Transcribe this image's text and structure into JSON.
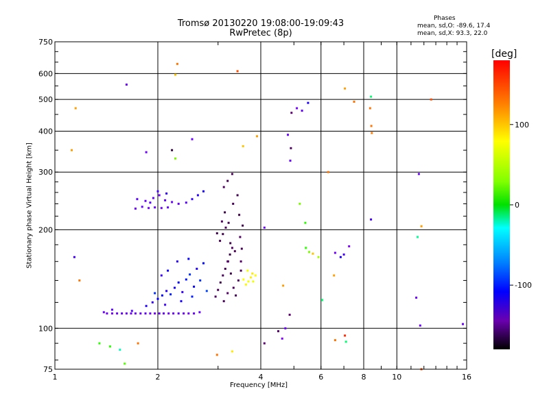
{
  "header": {
    "title": "Tromsø 20130220 19:08:00-19:09:43",
    "subtitle": "RwPretec (8p)",
    "phases_label": "Phases",
    "phases_o": "mean, sd,O: -89.6, 17.4",
    "phases_x": "mean, sd,X:  93.3, 22.0"
  },
  "chart_data": {
    "type": "scatter",
    "xlabel": "Frequency [MHz]",
    "ylabel": "Stationary phase Virtual Height [km]",
    "x_scale": "log",
    "y_scale": "log",
    "xlim": [
      1,
      16
    ],
    "ylim": [
      75,
      750
    ],
    "x_ticks": [
      1,
      2,
      4,
      6,
      8,
      10,
      16
    ],
    "y_ticks": [
      75,
      100,
      200,
      300,
      400,
      500,
      600,
      750
    ],
    "grid": true,
    "colorbar": {
      "label": "[deg]",
      "range": [
        -180,
        180
      ],
      "ticks": [
        100,
        0,
        -100
      ]
    },
    "series": [
      {
        "points": [
          [
            1.39,
            112,
            -110
          ],
          [
            1.42,
            111,
            -112
          ],
          [
            1.47,
            111,
            -111
          ],
          [
            1.52,
            111,
            -110
          ],
          [
            1.57,
            111,
            -108
          ],
          [
            1.62,
            111,
            -110
          ],
          [
            1.67,
            111,
            -111
          ],
          [
            1.72,
            111,
            -109
          ],
          [
            1.78,
            111,
            -110
          ],
          [
            1.84,
            111,
            -108
          ],
          [
            1.9,
            111,
            -110
          ],
          [
            1.96,
            111,
            -112
          ],
          [
            2.02,
            111,
            -110
          ],
          [
            2.08,
            111,
            -109
          ],
          [
            2.15,
            111,
            -111
          ],
          [
            2.22,
            111,
            -110
          ],
          [
            2.3,
            111,
            -108
          ],
          [
            2.38,
            111,
            -110
          ],
          [
            2.46,
            111,
            -112
          ],
          [
            2.55,
            111,
            -109
          ],
          [
            2.65,
            112,
            -110
          ],
          [
            1.47,
            114,
            -105
          ],
          [
            1.68,
            113,
            -102
          ],
          [
            1.85,
            117,
            -90
          ],
          [
            1.93,
            120,
            -95
          ],
          [
            2.0,
            123,
            -85
          ],
          [
            2.06,
            126,
            -80
          ],
          [
            2.12,
            130,
            -92
          ],
          [
            2.18,
            127,
            -75
          ],
          [
            2.24,
            133,
            -88
          ],
          [
            2.3,
            138,
            -82
          ],
          [
            2.36,
            129,
            -96
          ],
          [
            2.42,
            141,
            -78
          ],
          [
            2.48,
            146,
            -70
          ],
          [
            2.55,
            134,
            -85
          ],
          [
            2.6,
            152,
            -90
          ],
          [
            2.66,
            140,
            -72
          ],
          [
            2.72,
            158,
            -80
          ],
          [
            2.78,
            130,
            -65
          ],
          [
            2.05,
            145,
            -98
          ],
          [
            2.14,
            150,
            -86
          ],
          [
            2.28,
            160,
            -92
          ],
          [
            2.46,
            163,
            -84
          ],
          [
            1.96,
            128,
            -70
          ],
          [
            2.1,
            118,
            -98
          ],
          [
            2.34,
            121,
            -88
          ],
          [
            2.52,
            125,
            -76
          ],
          [
            2.95,
            125,
            -130
          ],
          [
            3.0,
            131,
            -135
          ],
          [
            3.05,
            138,
            -140
          ],
          [
            3.1,
            145,
            -132
          ],
          [
            3.15,
            152,
            -138
          ],
          [
            3.2,
            160,
            -130
          ],
          [
            3.25,
            168,
            -142
          ],
          [
            3.3,
            176,
            -128
          ],
          [
            3.04,
            185,
            -136
          ],
          [
            3.1,
            194,
            -140
          ],
          [
            3.16,
            203,
            -133
          ],
          [
            3.21,
            160,
            -126
          ],
          [
            3.27,
            147,
            -139
          ],
          [
            3.33,
            133,
            -131
          ],
          [
            3.38,
            126,
            -137
          ],
          [
            3.44,
            140,
            -129
          ],
          [
            3.12,
            121,
            -134
          ],
          [
            3.2,
            128,
            -127
          ],
          [
            3.26,
            182,
            -141
          ],
          [
            3.36,
            172,
            -133
          ],
          [
            3.5,
            160,
            -125
          ],
          [
            3.52,
            175,
            -135
          ],
          [
            3.48,
            190,
            -130
          ],
          [
            3.54,
            206,
            -138
          ],
          [
            3.46,
            222,
            -142
          ],
          [
            3.5,
            150,
            -132
          ],
          [
            2.98,
            195,
            -140
          ],
          [
            3.08,
            212,
            -128
          ],
          [
            3.14,
            226,
            -144
          ],
          [
            3.22,
            210,
            -136
          ],
          [
            3.32,
            240,
            -132
          ],
          [
            3.42,
            255,
            -138
          ],
          [
            3.12,
            270,
            -130
          ],
          [
            3.2,
            282,
            -140
          ],
          [
            3.3,
            296,
            -134
          ],
          [
            1.72,
            232,
            -110
          ],
          [
            1.8,
            235,
            -108
          ],
          [
            1.88,
            233,
            -112
          ],
          [
            1.96,
            234,
            -109
          ],
          [
            2.05,
            233,
            -111
          ],
          [
            2.14,
            234,
            -107
          ],
          [
            1.74,
            248,
            -105
          ],
          [
            1.84,
            245,
            -110
          ],
          [
            1.94,
            250,
            -108
          ],
          [
            2.02,
            255,
            -112
          ],
          [
            2.1,
            246,
            -106
          ],
          [
            2.2,
            243,
            -109
          ],
          [
            2.3,
            240,
            -110
          ],
          [
            2.42,
            242,
            -104
          ],
          [
            2.52,
            248,
            -96
          ],
          [
            2.62,
            255,
            -92
          ],
          [
            2.72,
            262,
            -88
          ],
          [
            2.0,
            262,
            -100
          ],
          [
            2.12,
            258,
            -96
          ],
          [
            1.9,
            242,
            -104
          ],
          [
            3.62,
            136,
            115
          ],
          [
            3.68,
            139,
            112
          ],
          [
            3.74,
            143,
            118
          ],
          [
            3.8,
            139,
            110
          ],
          [
            3.86,
            145,
            116
          ],
          [
            3.66,
            150,
            112
          ],
          [
            3.78,
            147,
            120
          ],
          [
            3.56,
            141,
            114
          ],
          [
            4.92,
            455,
            -120
          ],
          [
            5.1,
            470,
            -112
          ],
          [
            5.28,
            462,
            -108
          ],
          [
            5.5,
            488,
            -90
          ],
          [
            4.5,
            98,
            -120
          ],
          [
            4.62,
            93,
            -115
          ],
          [
            4.72,
            100,
            -110
          ],
          [
            4.86,
            110,
            -118
          ],
          [
            5.42,
            176,
            60
          ],
          [
            5.54,
            171,
            80
          ],
          [
            5.68,
            169,
            130
          ],
          [
            5.9,
            165,
            90
          ],
          [
            6.6,
            170,
            -112
          ],
          [
            6.85,
            165,
            -90
          ],
          [
            7.0,
            168,
            -100
          ],
          [
            7.25,
            178,
            -115
          ],
          [
            7.05,
            540,
            140
          ],
          [
            7.5,
            492,
            150
          ],
          [
            8.35,
            470,
            150
          ],
          [
            8.42,
            415,
            150
          ],
          [
            8.45,
            395,
            148
          ],
          [
            8.4,
            510,
            20
          ],
          [
            8.4,
            215,
            -100
          ],
          [
            11.6,
            296,
            -110
          ],
          [
            11.5,
            190,
            10
          ],
          [
            11.8,
            205,
            140
          ],
          [
            11.4,
            124,
            -110
          ],
          [
            11.8,
            75,
            160
          ],
          [
            12.6,
            500,
            160
          ],
          [
            15.6,
            103,
            -110
          ],
          [
            11.7,
            102,
            -110
          ],
          [
            1.15,
            470,
            140
          ],
          [
            1.12,
            350,
            140
          ],
          [
            1.14,
            165,
            -100
          ],
          [
            1.18,
            140,
            150
          ],
          [
            1.45,
            88,
            60
          ],
          [
            1.55,
            86,
            0
          ],
          [
            1.6,
            78,
            70
          ],
          [
            1.75,
            90,
            150
          ],
          [
            1.62,
            555,
            -110
          ],
          [
            1.85,
            345,
            -110
          ],
          [
            2.25,
            595,
            130
          ],
          [
            2.28,
            642,
            150
          ],
          [
            2.2,
            350,
            -150
          ],
          [
            2.25,
            330,
            80
          ],
          [
            2.52,
            378,
            -110
          ],
          [
            3.42,
            610,
            160
          ],
          [
            3.55,
            360,
            130
          ],
          [
            3.9,
            386,
            140
          ],
          [
            4.1,
            203,
            -110
          ],
          [
            4.8,
            390,
            -110
          ],
          [
            4.88,
            325,
            -110
          ],
          [
            4.9,
            355,
            -130
          ],
          [
            4.1,
            90,
            -120
          ],
          [
            2.98,
            83,
            150
          ],
          [
            3.3,
            85,
            120
          ],
          [
            5.4,
            210,
            60
          ],
          [
            5.2,
            240,
            80
          ],
          [
            6.6,
            92,
            150
          ],
          [
            7.1,
            91,
            20
          ],
          [
            7.05,
            95,
            170
          ],
          [
            6.3,
            300,
            150
          ],
          [
            6.55,
            145,
            140
          ],
          [
            6.05,
            122,
            20
          ],
          [
            1.35,
            90,
            60
          ],
          [
            4.65,
            135,
            140
          ]
        ]
      }
    ]
  }
}
